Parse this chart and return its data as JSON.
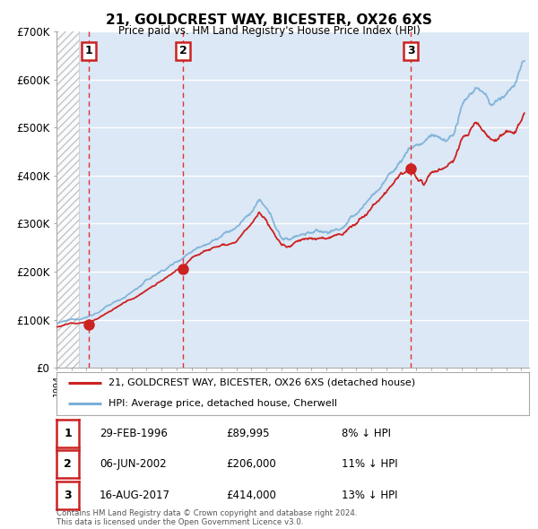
{
  "title": "21, GOLDCREST WAY, BICESTER, OX26 6XS",
  "subtitle": "Price paid vs. HM Land Registry's House Price Index (HPI)",
  "legend_entry1": "21, GOLDCREST WAY, BICESTER, OX26 6XS (detached house)",
  "legend_entry2": "HPI: Average price, detached house, Cherwell",
  "transactions": [
    {
      "label": "1",
      "date": "29-FEB-1996",
      "price": 89995,
      "pct": "8%",
      "x_year": 1996.16
    },
    {
      "label": "2",
      "date": "06-JUN-2002",
      "price": 206000,
      "pct": "11%",
      "x_year": 2002.44
    },
    {
      "label": "3",
      "date": "16-AUG-2017",
      "price": 414000,
      "pct": "13%",
      "x_year": 2017.62
    }
  ],
  "table_rows": [
    [
      "1",
      "29-FEB-1996",
      "£89,995",
      "8% ↓ HPI"
    ],
    [
      "2",
      "06-JUN-2002",
      "£206,000",
      "11% ↓ HPI"
    ],
    [
      "3",
      "16-AUG-2017",
      "£414,000",
      "13% ↓ HPI"
    ]
  ],
  "footer": "Contains HM Land Registry data © Crown copyright and database right 2024.\nThis data is licensed under the Open Government Licence v3.0.",
  "ylim": [
    0,
    700000
  ],
  "xlim_start": 1994,
  "xlim_end": 2025.5,
  "hatch_end": 1995.5,
  "background_color": "#ffffff",
  "plot_bg_color": "#dce8f5",
  "grid_color": "#ffffff",
  "line_color_hpi": "#7ab0d8",
  "line_color_price": "#cc2222",
  "dashed_line_color": "#dd3333",
  "label_box_color": "#cc2222"
}
